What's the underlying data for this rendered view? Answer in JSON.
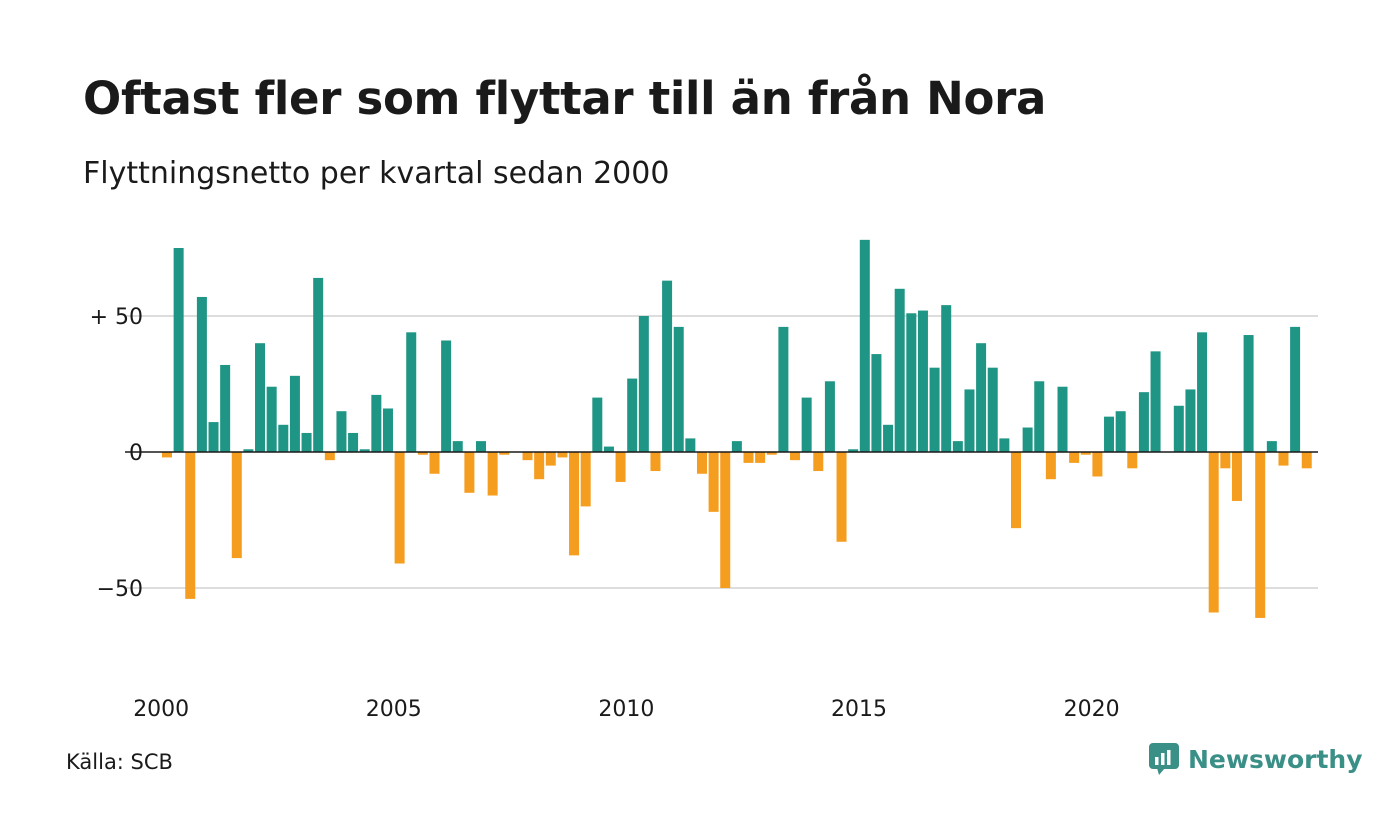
{
  "colors": {
    "positive": "#1e9585",
    "negative": "#f59d1e",
    "grid": "#dddddd",
    "brand": "#3a8f87"
  },
  "header": {
    "title": "Oftast fler som flyttar till än från Nora",
    "subtitle": "Flyttningsnetto per kvartal sedan 2000"
  },
  "footer": {
    "source": "Källa: SCB",
    "brand_name": "Newsworthy",
    "brand_icon": "chart-bubble-icon"
  },
  "chart_data": {
    "type": "bar",
    "x_start": "2000-Q1",
    "x_ticks": [
      "2000",
      "2005",
      "2010",
      "2015",
      "2020"
    ],
    "y_ticks": [
      {
        "value": 50,
        "label": "+ 50"
      },
      {
        "value": 0,
        "label": "0"
      },
      {
        "value": -50,
        "label": "−50"
      }
    ],
    "ylim": [
      -70,
      80
    ],
    "grid": true,
    "values": [
      -2,
      75,
      -54,
      57,
      11,
      32,
      -39,
      1,
      40,
      24,
      10,
      28,
      7,
      64,
      -3,
      15,
      7,
      1,
      21,
      16,
      -41,
      44,
      -1,
      -8,
      41,
      4,
      -15,
      4,
      -16,
      -1,
      0,
      -3,
      -10,
      -5,
      -2,
      -38,
      -20,
      20,
      2,
      -11,
      27,
      50,
      -7,
      63,
      46,
      5,
      -8,
      -22,
      -50,
      4,
      -4,
      -4,
      -1,
      46,
      -3,
      20,
      -7,
      26,
      -33,
      1,
      78,
      36,
      10,
      60,
      51,
      52,
      31,
      54,
      4,
      23,
      40,
      31,
      5,
      -28,
      9,
      26,
      -10,
      24,
      -4,
      -1,
      -9,
      13,
      15,
      -6,
      22,
      37,
      0,
      17,
      23,
      44,
      -59,
      -6,
      -18,
      43,
      -61,
      4,
      -5,
      46,
      -6
    ]
  }
}
